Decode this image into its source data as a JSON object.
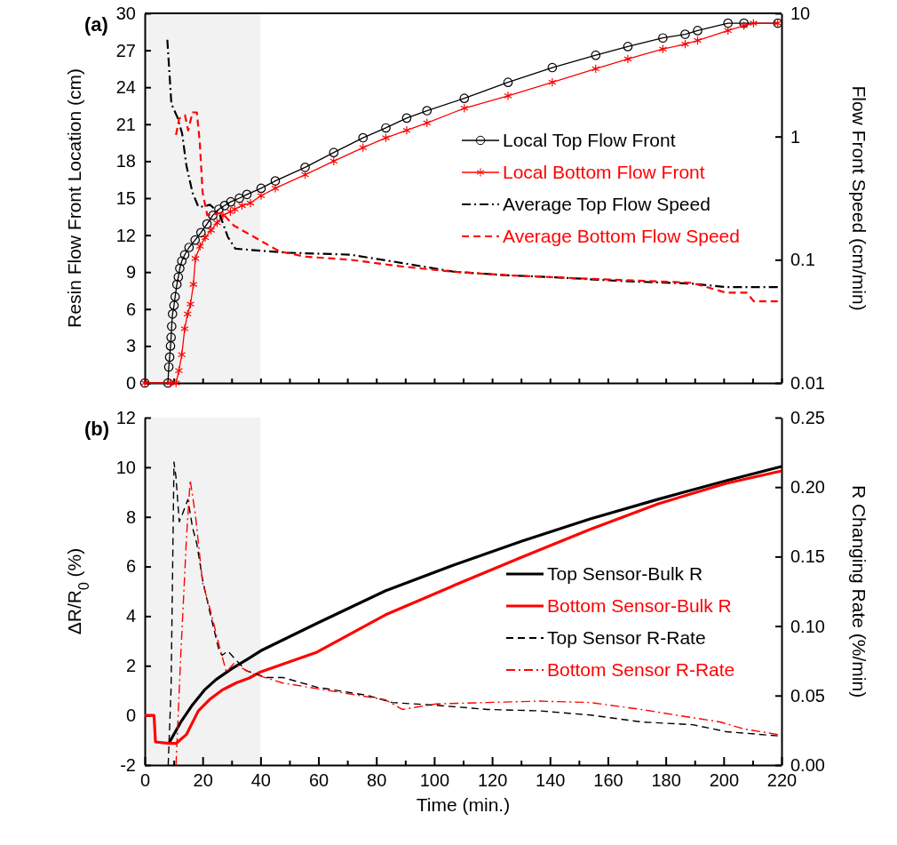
{
  "chart_data": [
    {
      "type": "line",
      "ylabel": "Resin Flow Front Location (cm)",
      "y2label": "Flow Front Speed (cm/min)",
      "annotations": [
        "(a)"
      ],
      "xlim": [
        0,
        220
      ],
      "xticks": [
        {
          "value": 0,
          "label": null
        },
        {
          "value": 10,
          "label": null
        },
        {
          "value": 20,
          "label": null
        },
        {
          "value": 30,
          "label": null
        },
        {
          "value": 40,
          "label": null
        },
        {
          "value": 50,
          "label": null
        },
        {
          "value": 60,
          "label": null
        },
        {
          "value": 70,
          "label": null
        },
        {
          "value": 80,
          "label": null
        },
        {
          "value": 90,
          "label": null
        },
        {
          "value": 100,
          "label": null
        },
        {
          "value": 110,
          "label": null
        },
        {
          "value": 120,
          "label": null
        },
        {
          "value": 130,
          "label": null
        },
        {
          "value": 140,
          "label": null
        },
        {
          "value": 150,
          "label": null
        },
        {
          "value": 160,
          "label": null
        },
        {
          "value": 170,
          "label": null
        },
        {
          "value": 180,
          "label": null
        },
        {
          "value": 190,
          "label": null
        },
        {
          "value": 200,
          "label": null
        },
        {
          "value": 210,
          "label": null
        },
        {
          "value": 220,
          "label": null
        }
      ],
      "ylim": [
        0,
        30
      ],
      "yticks": [
        0,
        3,
        6,
        9,
        12,
        15,
        18,
        21,
        24,
        27,
        30
      ],
      "y2lim": [
        0.01,
        10
      ],
      "y2ticks": [
        0.01,
        0.1,
        1,
        10
      ],
      "log": "y2",
      "tick_labels": "y",
      "legend": "right",
      "bands": [
        {
          "axis": "x",
          "from": 0,
          "to": 40,
          "color": "#f2f2f2"
        }
      ],
      "series": [
        {
          "name": "Local Top Flow Front",
          "color": "#000000",
          "marker": "circle",
          "line_style": "solid",
          "x": [
            0,
            8,
            8.3,
            8.6,
            8.9,
            9.1,
            9.3,
            9.6,
            10.1,
            10.5,
            11.1,
            11.6,
            12.1,
            12.8,
            13.8,
            15.3,
            17.4,
            19.4,
            21.5,
            23.5,
            25.6,
            27.6,
            29.7,
            32.7,
            35.3,
            40.2,
            45.1,
            55.4,
            65.3,
            75.4,
            83.3,
            90.5,
            97.5,
            110.4,
            125.5,
            140.8,
            155.8,
            166.9,
            179,
            186.7,
            191,
            201.5,
            207,
            218.7
          ],
          "values": [
            0,
            0,
            1.3,
            2.1,
            3,
            3.7,
            4.6,
            5.6,
            6.3,
            7,
            8,
            8.6,
            9.3,
            9.9,
            10.4,
            11,
            11.6,
            12.2,
            12.9,
            13.6,
            14.1,
            14.4,
            14.7,
            15,
            15.3,
            15.8,
            16.4,
            17.5,
            18.7,
            19.9,
            20.7,
            21.5,
            22.1,
            23.1,
            24.4,
            25.6,
            26.6,
            27.3,
            28,
            28.3,
            28.6,
            29.2,
            29.2,
            29.2
          ]
        },
        {
          "name": "Local Bottom Flow Front",
          "color": "#ff0000",
          "marker": "cross",
          "line_style": "solid",
          "x": [
            0,
            8.8,
            10.8,
            11.8,
            12.8,
            13.8,
            14.8,
            15.8,
            16.8,
            17.5,
            19.1,
            20.9,
            22.9,
            25,
            27,
            29.6,
            31.1,
            33.6,
            36.5,
            40.2,
            45.1,
            55.4,
            65.3,
            75.4,
            83.3,
            90.5,
            97.5,
            110.4,
            125.5,
            140.8,
            155.8,
            166.9,
            179,
            186.7,
            191,
            201.5,
            207,
            210.3,
            218.7
          ],
          "values": [
            0,
            0,
            0,
            1,
            2.3,
            4.4,
            5.6,
            6.4,
            8,
            10.1,
            11.1,
            11.8,
            12.4,
            13,
            13.6,
            13.9,
            14.1,
            14.4,
            14.6,
            15.2,
            15.8,
            16.9,
            18,
            19.1,
            19.9,
            20.5,
            21.1,
            22.3,
            23.3,
            24.4,
            25.5,
            26.3,
            27.1,
            27.5,
            27.8,
            28.6,
            29,
            29.2,
            29.2
          ]
        },
        {
          "name": "Average Top Flow Speed",
          "color": "#000000",
          "line_style": "dashdot",
          "axis": "y2",
          "x": [
            7.8,
            9.2,
            11.3,
            12.9,
            14.4,
            16.5,
            18.5,
            20.5,
            22.5,
            25.7,
            28.7,
            31.3,
            36.8,
            49.4,
            71,
            89,
            106.7,
            124.4,
            142,
            165.6,
            189,
            200.9,
            218.7
          ],
          "values": [
            6.1,
            1.84,
            1.43,
            1.06,
            0.58,
            0.35,
            0.27,
            0.27,
            0.28,
            0.24,
            0.153,
            0.123,
            0.12,
            0.114,
            0.11,
            0.094,
            0.08,
            0.075,
            0.072,
            0.067,
            0.064,
            0.06,
            0.06
          ]
        },
        {
          "name": "Average Bottom Flow Speed",
          "color": "#ff0000",
          "line_style": "dashed",
          "axis": "y2",
          "x": [
            10.8,
            11.9,
            13.9,
            15,
            16.5,
            18,
            19,
            20,
            21.6,
            26.7,
            30.7,
            35.9,
            46.5,
            55.4,
            71,
            89,
            106.7,
            124.4,
            153.9,
            183,
            189,
            200.9,
            208,
            210.4,
            218.7
          ],
          "values": [
            1.03,
            1.4,
            1.49,
            1.12,
            1.57,
            1.57,
            0.9,
            0.35,
            0.23,
            0.24,
            0.19,
            0.162,
            0.117,
            0.106,
            0.1,
            0.088,
            0.08,
            0.075,
            0.07,
            0.066,
            0.065,
            0.054,
            0.054,
            0.046,
            0.046
          ]
        }
      ]
    },
    {
      "type": "line",
      "xlabel": "Time (min.)",
      "ylabel": "ΔR/R$_{0}$ (%)",
      "y2label": "R Changing Rate (%/min)",
      "annotations": [
        "(b)"
      ],
      "xlim": [
        0,
        220
      ],
      "xticks": [
        0,
        {
          "value": 10,
          "label": null
        },
        20,
        {
          "value": 30,
          "label": null
        },
        40,
        {
          "value": 50,
          "label": null
        },
        60,
        {
          "value": 70,
          "label": null
        },
        80,
        {
          "value": 90,
          "label": null
        },
        100,
        {
          "value": 110,
          "label": null
        },
        120,
        {
          "value": 130,
          "label": null
        },
        140,
        {
          "value": 150,
          "label": null
        },
        160,
        {
          "value": 170,
          "label": null
        },
        180,
        {
          "value": 190,
          "label": null
        },
        200,
        {
          "value": 210,
          "label": null
        },
        220
      ],
      "ylim": [
        -2,
        12
      ],
      "yticks": [
        -2,
        0,
        2,
        4,
        6,
        8,
        10,
        12
      ],
      "y2lim": [
        0,
        0.25
      ],
      "y2ticks": [
        {
          "value": 0,
          "label": "0.00"
        },
        0.05,
        {
          "value": 0.1,
          "label": "0.10"
        },
        0.15,
        {
          "value": 0.2,
          "label": "0.20"
        },
        0.25
      ],
      "legend": "lower right",
      "bands": [
        {
          "axis": "x",
          "from": 0,
          "to": 40,
          "color": "#f2f2f2"
        }
      ],
      "series": [
        {
          "name": "Top Sensor-Bulk R",
          "color": "#000000",
          "line_style": "solid",
          "x": [
            8.3,
            12.4,
            16.5,
            20.6,
            24.6,
            29.8,
            36,
            40,
            59.5,
            83.1,
            106.7,
            130.3,
            153.9,
            177.4,
            200.9,
            220
          ],
          "values": [
            -1.13,
            -0.28,
            0.43,
            1.02,
            1.44,
            1.86,
            2.3,
            2.6,
            3.71,
            5.02,
            6.06,
            7.02,
            7.92,
            8.71,
            9.46,
            10.03
          ]
        },
        {
          "name": "Bottom Sensor-Bulk R",
          "color": "#ff0000",
          "line_style": "solid",
          "x": [
            0,
            3.2,
            3.7,
            8.3,
            10.8,
            14.4,
            18.5,
            22.6,
            26.7,
            31.8,
            36,
            40,
            59.5,
            83.1,
            106.7,
            130.3,
            153.9,
            177.4,
            200.9,
            220
          ],
          "values": [
            0,
            0,
            -1.07,
            -1.13,
            -1.13,
            -0.77,
            0.18,
            0.66,
            1.02,
            1.32,
            1.5,
            1.75,
            2.55,
            4.05,
            5.23,
            6.38,
            7.5,
            8.53,
            9.35,
            9.85
          ]
        },
        {
          "name": "Top Sensor R-Rate",
          "color": "#000000",
          "line_style": "dashed",
          "axis": "y2",
          "x": [
            8.1,
            9.1,
            10.1,
            10.8,
            11.9,
            12.9,
            14.9,
            16.5,
            18,
            20,
            22.6,
            25.7,
            26.7,
            28.7,
            31.8,
            34.9,
            42,
            47.7,
            59.5,
            77.2,
            85.4,
            100.8,
            118.4,
            136.2,
            153.9,
            171.5,
            189.3,
            200.9,
            218.7
          ],
          "values": [
            0,
            0.056,
            0.218,
            0.207,
            0.175,
            0.18,
            0.191,
            0.171,
            0.159,
            0.133,
            0.109,
            0.082,
            0.079,
            0.082,
            0.075,
            0.068,
            0.063,
            0.063,
            0.056,
            0.05,
            0.045,
            0.043,
            0.04,
            0.039,
            0.036,
            0.031,
            0.029,
            0.024,
            0.021
          ]
        },
        {
          "name": "Bottom Sensor R-Rate",
          "color": "#ff0000",
          "line_style": "dashdot",
          "axis": "y2",
          "x": [
            10.8,
            12.4,
            14.4,
            15.7,
            17.5,
            20,
            22.6,
            25.7,
            28.2,
            30.8,
            36.9,
            47.7,
            65.3,
            83.1,
            89,
            100.8,
            118.4,
            136.2,
            153.9,
            171.5,
            183.4,
            198.7,
            207,
            218.7
          ],
          "values": [
            0,
            0.077,
            0.163,
            0.205,
            0.18,
            0.131,
            0.112,
            0.086,
            0.067,
            0.073,
            0.066,
            0.059,
            0.053,
            0.047,
            0.04,
            0.044,
            0.045,
            0.046,
            0.045,
            0.04,
            0.036,
            0.031,
            0.026,
            0.022
          ]
        }
      ]
    }
  ]
}
